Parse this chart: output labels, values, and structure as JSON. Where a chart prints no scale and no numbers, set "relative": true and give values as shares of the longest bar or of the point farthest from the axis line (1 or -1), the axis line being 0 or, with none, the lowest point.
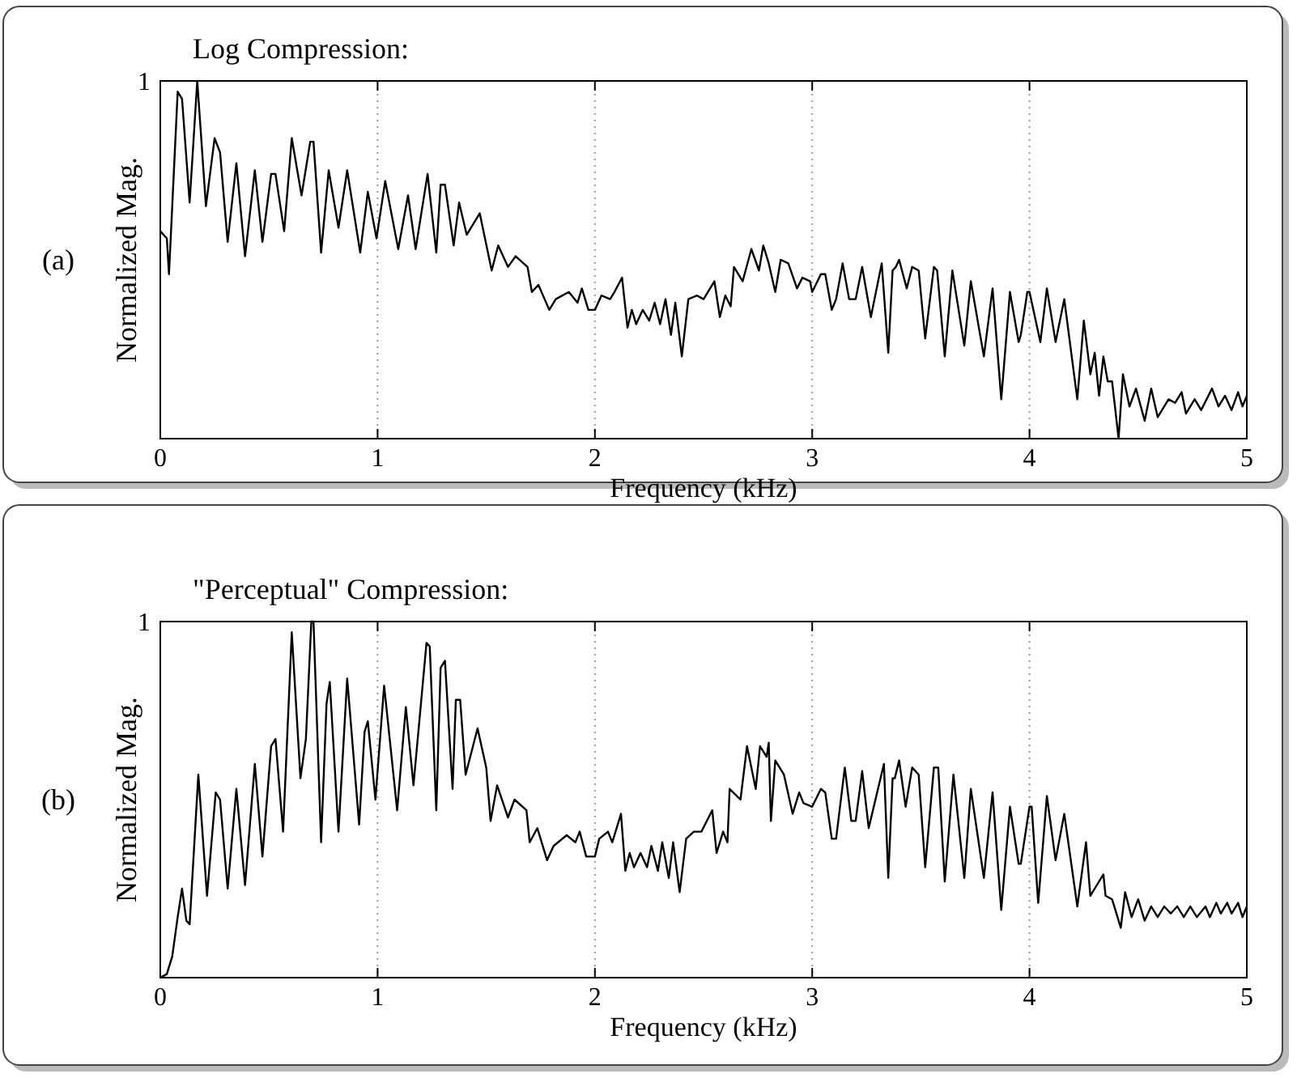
{
  "chart_data": [
    {
      "type": "line",
      "title": "Log Compression:",
      "xlabel": "Frequency (kHz)",
      "ylabel": "Normalized Mag.",
      "annotations": [
        "(a)",
        "1"
      ],
      "relative": true,
      "color": "#000000",
      "xlim": [
        0,
        5
      ],
      "xticks": [
        0,
        1,
        2,
        3,
        4,
        5
      ],
      "grid": "x",
      "x": [
        0,
        0.03,
        0.04,
        0.08,
        0.1,
        0.135,
        0.17,
        0.21,
        0.25,
        0.275,
        0.31,
        0.35,
        0.39,
        0.435,
        0.47,
        0.51,
        0.53,
        0.57,
        0.605,
        0.65,
        0.69,
        0.705,
        0.74,
        0.775,
        0.82,
        0.86,
        0.92,
        0.955,
        0.995,
        1.035,
        1.095,
        1.14,
        1.175,
        1.23,
        1.27,
        1.29,
        1.31,
        1.35,
        1.375,
        1.41,
        1.47,
        1.525,
        1.555,
        1.6,
        1.635,
        1.69,
        1.71,
        1.74,
        1.79,
        1.82,
        1.88,
        1.92,
        1.94,
        1.97,
        2.0,
        2.03,
        2.07,
        2.09,
        2.125,
        2.15,
        2.17,
        2.19,
        2.22,
        2.25,
        2.275,
        2.3,
        2.325,
        2.35,
        2.37,
        2.4,
        2.43,
        2.47,
        2.5,
        2.55,
        2.575,
        2.6,
        2.625,
        2.64,
        2.68,
        2.72,
        2.755,
        2.775,
        2.8,
        2.83,
        2.855,
        2.89,
        2.93,
        2.955,
        2.99,
        3.0,
        3.04,
        3.06,
        3.09,
        3.11,
        3.14,
        3.17,
        3.2,
        3.23,
        3.27,
        3.32,
        3.35,
        3.37,
        3.385,
        3.4,
        3.435,
        3.46,
        3.49,
        3.52,
        3.56,
        3.575,
        3.61,
        3.645,
        3.7,
        3.73,
        3.79,
        3.83,
        3.87,
        3.91,
        3.95,
        3.96,
        3.99,
        4.0,
        4.05,
        4.08,
        4.12,
        4.16,
        4.22,
        4.25,
        4.28,
        4.3,
        4.32,
        4.34,
        4.36,
        4.38,
        4.41,
        4.43,
        4.46,
        4.49,
        4.53,
        4.56,
        4.59,
        4.64,
        4.67,
        4.7,
        4.72,
        4.76,
        4.79,
        4.84,
        4.87,
        4.9,
        4.93,
        4.96,
        4.98,
        5.0
      ],
      "values": [
        0.58,
        0.56,
        0.46,
        0.97,
        0.95,
        0.66,
        1.0,
        0.65,
        0.84,
        0.8,
        0.55,
        0.77,
        0.51,
        0.75,
        0.55,
        0.74,
        0.74,
        0.58,
        0.84,
        0.68,
        0.83,
        0.83,
        0.52,
        0.75,
        0.59,
        0.75,
        0.52,
        0.69,
        0.56,
        0.72,
        0.53,
        0.68,
        0.53,
        0.74,
        0.52,
        0.71,
        0.71,
        0.54,
        0.66,
        0.57,
        0.63,
        0.47,
        0.54,
        0.48,
        0.51,
        0.48,
        0.41,
        0.43,
        0.36,
        0.39,
        0.41,
        0.38,
        0.42,
        0.36,
        0.36,
        0.4,
        0.39,
        0.41,
        0.45,
        0.31,
        0.36,
        0.32,
        0.36,
        0.33,
        0.38,
        0.32,
        0.39,
        0.29,
        0.38,
        0.23,
        0.39,
        0.4,
        0.39,
        0.44,
        0.34,
        0.4,
        0.37,
        0.48,
        0.44,
        0.53,
        0.47,
        0.54,
        0.49,
        0.41,
        0.5,
        0.49,
        0.42,
        0.45,
        0.44,
        0.41,
        0.46,
        0.46,
        0.36,
        0.39,
        0.49,
        0.39,
        0.39,
        0.48,
        0.34,
        0.49,
        0.24,
        0.47,
        0.48,
        0.5,
        0.42,
        0.48,
        0.47,
        0.28,
        0.48,
        0.47,
        0.23,
        0.47,
        0.26,
        0.44,
        0.23,
        0.42,
        0.11,
        0.41,
        0.27,
        0.29,
        0.41,
        0.41,
        0.27,
        0.42,
        0.27,
        0.39,
        0.11,
        0.33,
        0.18,
        0.24,
        0.12,
        0.23,
        0.16,
        0.16,
        0.0,
        0.18,
        0.09,
        0.14,
        0.05,
        0.14,
        0.06,
        0.11,
        0.1,
        0.13,
        0.07,
        0.11,
        0.08,
        0.14,
        0.09,
        0.12,
        0.08,
        0.13,
        0.09,
        0.12
      ]
    },
    {
      "type": "line",
      "title": "\"Perceptual\" Compression:",
      "xlabel": "Frequency (kHz)",
      "ylabel": "Normalized Mag.",
      "annotations": [
        "(b)",
        "1"
      ],
      "relative": true,
      "color": "#000000",
      "xlim": [
        0,
        5
      ],
      "xticks": [
        0,
        1,
        2,
        3,
        4,
        5
      ],
      "grid": "x",
      "x": [
        0,
        0.03,
        0.055,
        0.08,
        0.1,
        0.12,
        0.135,
        0.175,
        0.215,
        0.255,
        0.275,
        0.31,
        0.35,
        0.39,
        0.435,
        0.47,
        0.51,
        0.53,
        0.565,
        0.605,
        0.645,
        0.67,
        0.695,
        0.705,
        0.74,
        0.765,
        0.78,
        0.82,
        0.86,
        0.915,
        0.94,
        0.955,
        0.99,
        1.03,
        1.09,
        1.13,
        1.165,
        1.225,
        1.24,
        1.27,
        1.29,
        1.31,
        1.345,
        1.36,
        1.38,
        1.405,
        1.46,
        1.5,
        1.52,
        1.55,
        1.6,
        1.63,
        1.685,
        1.7,
        1.735,
        1.78,
        1.81,
        1.87,
        1.91,
        1.93,
        1.96,
        2.0,
        2.02,
        2.06,
        2.08,
        2.12,
        2.14,
        2.16,
        2.18,
        2.21,
        2.24,
        2.26,
        2.29,
        2.31,
        2.34,
        2.36,
        2.39,
        2.42,
        2.455,
        2.49,
        2.54,
        2.56,
        2.59,
        2.61,
        2.62,
        2.67,
        2.7,
        2.74,
        2.76,
        2.79,
        2.8,
        2.81,
        2.83,
        2.87,
        2.91,
        2.94,
        2.96,
        3.0,
        3.04,
        3.06,
        3.09,
        3.11,
        3.15,
        3.18,
        3.2,
        3.23,
        3.26,
        3.33,
        3.35,
        3.37,
        3.38,
        3.4,
        3.43,
        3.46,
        3.49,
        3.52,
        3.56,
        3.58,
        3.61,
        3.65,
        3.7,
        3.73,
        3.79,
        3.83,
        3.87,
        3.91,
        3.95,
        3.96,
        4.0,
        4.01,
        4.04,
        4.08,
        4.12,
        4.16,
        4.22,
        4.26,
        4.28,
        4.3,
        4.34,
        4.35,
        4.38,
        4.42,
        4.44,
        4.47,
        4.5,
        4.53,
        4.56,
        4.59,
        4.62,
        4.65,
        4.68,
        4.71,
        4.74,
        4.77,
        4.81,
        4.83,
        4.86,
        4.88,
        4.91,
        4.93,
        4.96,
        4.98,
        5.0
      ],
      "values": [
        0.0,
        0.01,
        0.06,
        0.17,
        0.25,
        0.16,
        0.15,
        0.57,
        0.23,
        0.52,
        0.5,
        0.25,
        0.53,
        0.26,
        0.6,
        0.34,
        0.65,
        0.67,
        0.41,
        0.97,
        0.56,
        0.67,
        1.0,
        1.0,
        0.38,
        0.77,
        0.83,
        0.41,
        0.84,
        0.43,
        0.69,
        0.72,
        0.5,
        0.82,
        0.47,
        0.76,
        0.54,
        0.94,
        0.93,
        0.47,
        0.87,
        0.89,
        0.53,
        0.78,
        0.78,
        0.57,
        0.7,
        0.59,
        0.44,
        0.54,
        0.45,
        0.5,
        0.47,
        0.38,
        0.42,
        0.33,
        0.37,
        0.4,
        0.38,
        0.41,
        0.34,
        0.34,
        0.39,
        0.41,
        0.38,
        0.46,
        0.3,
        0.35,
        0.31,
        0.35,
        0.31,
        0.37,
        0.3,
        0.38,
        0.28,
        0.38,
        0.24,
        0.39,
        0.41,
        0.41,
        0.47,
        0.35,
        0.41,
        0.38,
        0.53,
        0.5,
        0.65,
        0.53,
        0.65,
        0.62,
        0.66,
        0.44,
        0.61,
        0.57,
        0.46,
        0.52,
        0.49,
        0.48,
        0.53,
        0.52,
        0.39,
        0.39,
        0.59,
        0.44,
        0.44,
        0.58,
        0.42,
        0.6,
        0.28,
        0.56,
        0.56,
        0.61,
        0.48,
        0.59,
        0.57,
        0.31,
        0.59,
        0.59,
        0.27,
        0.57,
        0.28,
        0.53,
        0.28,
        0.52,
        0.19,
        0.48,
        0.32,
        0.32,
        0.48,
        0.48,
        0.21,
        0.51,
        0.33,
        0.46,
        0.2,
        0.38,
        0.23,
        0.25,
        0.29,
        0.23,
        0.22,
        0.14,
        0.24,
        0.17,
        0.22,
        0.16,
        0.2,
        0.17,
        0.2,
        0.18,
        0.2,
        0.17,
        0.2,
        0.17,
        0.2,
        0.17,
        0.21,
        0.18,
        0.21,
        0.18,
        0.21,
        0.17,
        0.2
      ]
    }
  ]
}
